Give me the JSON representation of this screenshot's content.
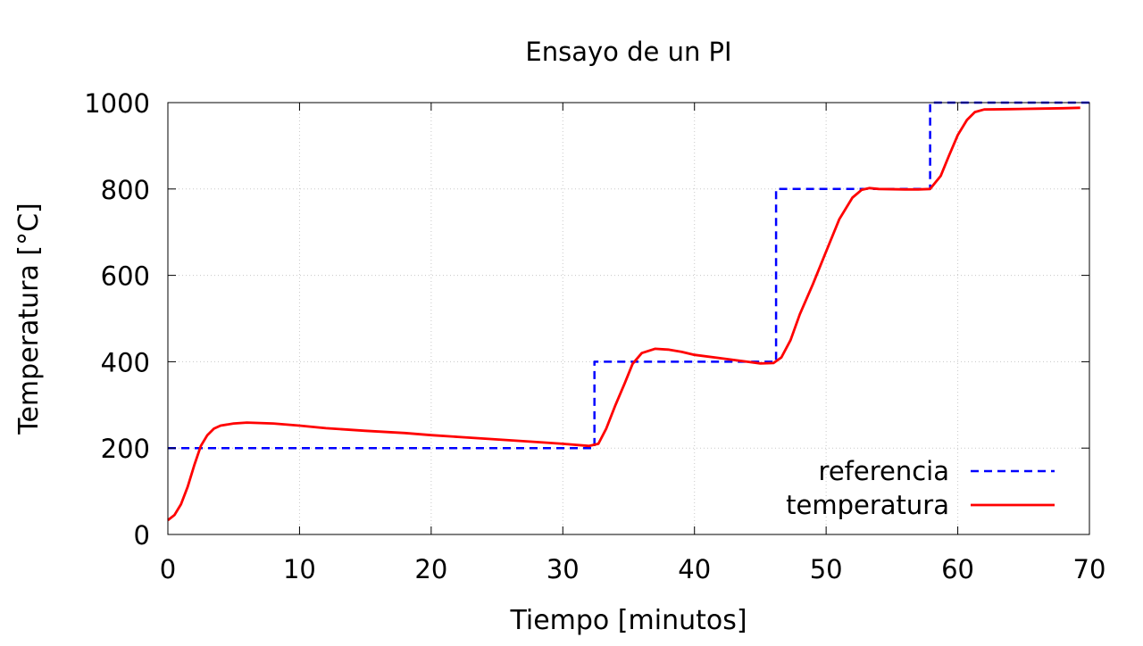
{
  "chart_data": {
    "type": "line",
    "title": "Ensayo de un PI",
    "xlabel": "Tiempo [minutos]",
    "ylabel": "Temperatura [°C]",
    "xlim": [
      0,
      70
    ],
    "ylim": [
      0,
      1000
    ],
    "xticks": [
      0,
      10,
      20,
      30,
      40,
      50,
      60,
      70
    ],
    "yticks": [
      0,
      200,
      400,
      600,
      800,
      1000
    ],
    "grid": true,
    "legend_position": "bottom-right",
    "series": [
      {
        "name": "referencia",
        "color": "#0000ff",
        "style": "dashed",
        "x": [
          0,
          32.4,
          32.4,
          46.2,
          46.2,
          57.9,
          57.9,
          70
        ],
        "y": [
          200,
          200,
          400,
          400,
          800,
          800,
          1000,
          1000
        ]
      },
      {
        "name": "temperatura",
        "color": "#ff0000",
        "style": "solid",
        "x": [
          0,
          0.5,
          1,
          1.5,
          2,
          2.5,
          3,
          3.5,
          4,
          5,
          6,
          7,
          8,
          10,
          12,
          15,
          18,
          20,
          22,
          25,
          28,
          30,
          32,
          32.7,
          33.3,
          34,
          34.7,
          35.3,
          36,
          37,
          38,
          39,
          40,
          42,
          44,
          45,
          46,
          46.6,
          47.3,
          48,
          49,
          50,
          51,
          52,
          52.7,
          53.3,
          54,
          56,
          57,
          57.9,
          58.7,
          59.3,
          60,
          60.7,
          61.3,
          62,
          64,
          66,
          68,
          69.3
        ],
        "y": [
          33,
          45,
          70,
          110,
          160,
          205,
          230,
          245,
          252,
          257,
          259,
          258,
          257,
          252,
          246,
          240,
          235,
          230,
          226,
          220,
          214,
          210,
          205,
          210,
          245,
          300,
          350,
          395,
          420,
          430,
          428,
          423,
          416,
          408,
          400,
          396,
          397,
          410,
          450,
          510,
          580,
          655,
          730,
          780,
          798,
          802,
          800,
          799,
          799,
          800,
          830,
          875,
          925,
          960,
          978,
          984,
          985,
          986,
          987,
          988
        ]
      }
    ]
  }
}
